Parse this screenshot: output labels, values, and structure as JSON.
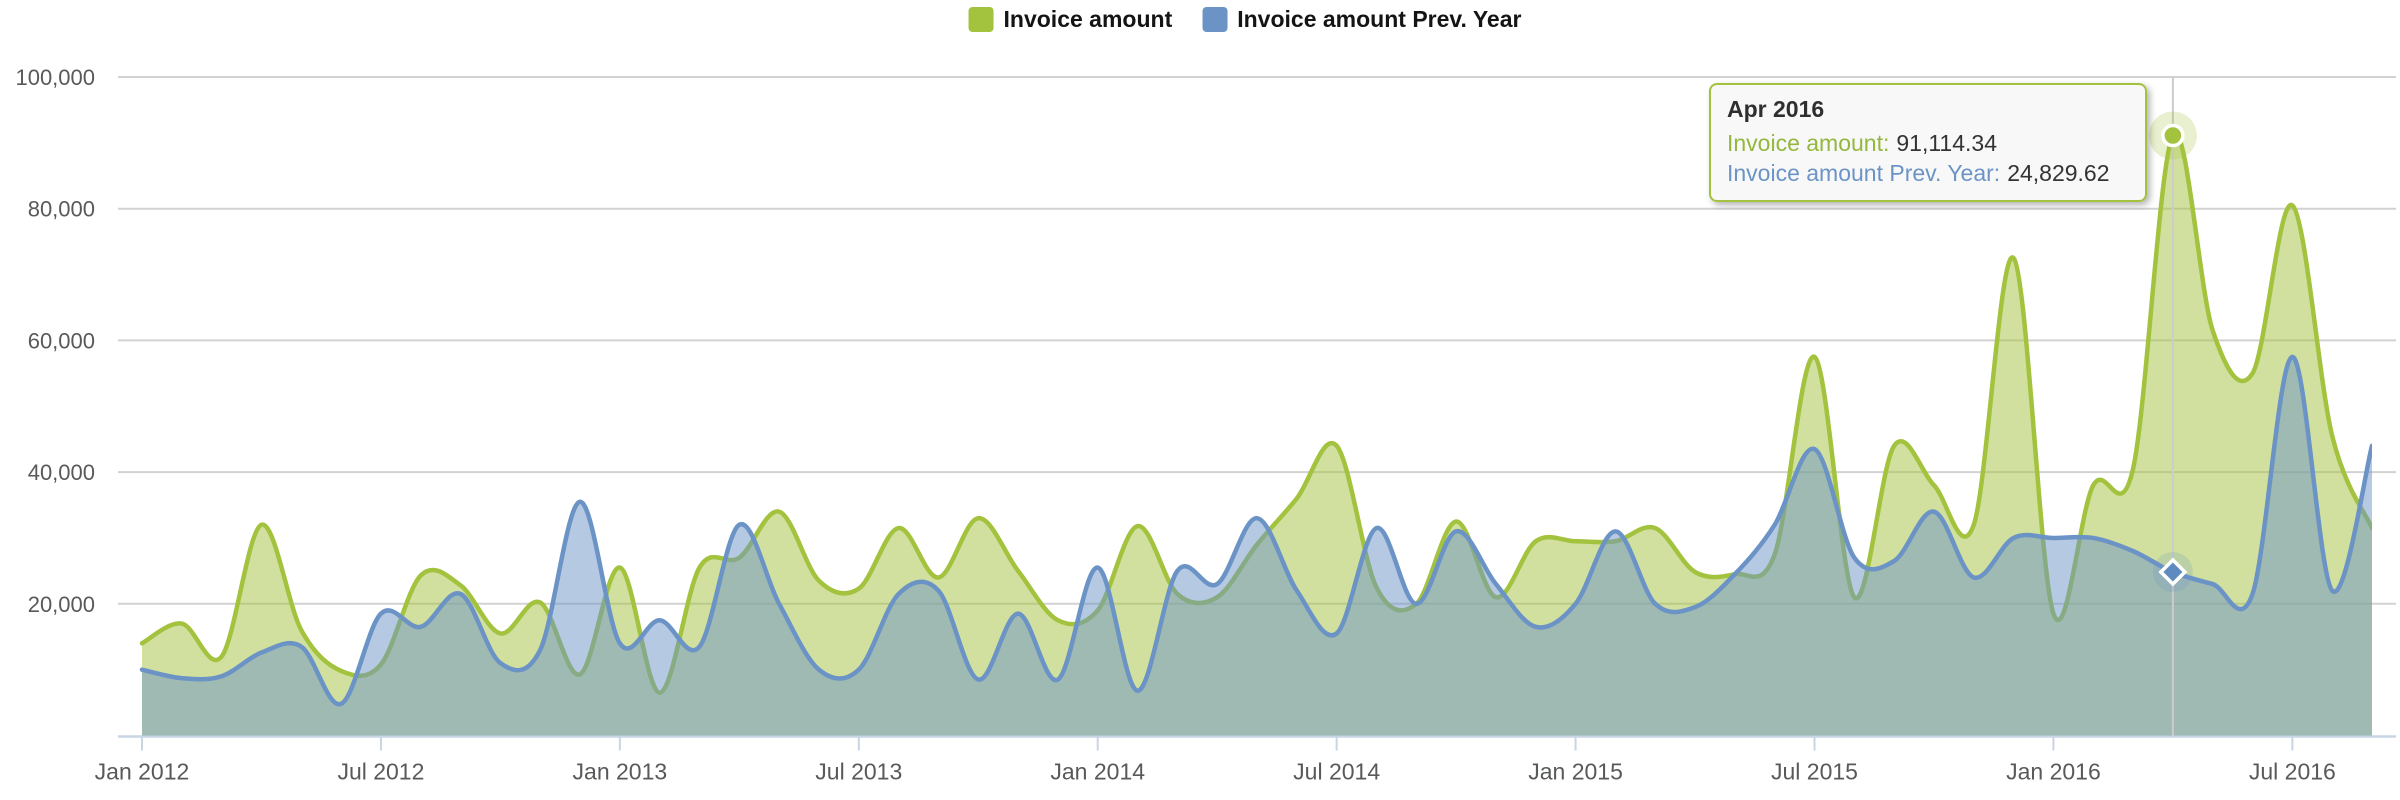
{
  "legend": {
    "items": [
      {
        "label": "Invoice amount",
        "color": "#a3c23e"
      },
      {
        "label": "Invoice amount Prev. Year",
        "color": "#6b93c6"
      }
    ]
  },
  "tooltip": {
    "title": "Apr 2016",
    "rows": [
      {
        "label": "Invoice amount:",
        "value": "91,114.34",
        "color": "#94b73e"
      },
      {
        "label": "Invoice amount Prev. Year:",
        "value": "24,829.62",
        "color": "#6b93c6"
      }
    ]
  },
  "chart_data": {
    "type": "area",
    "title": "",
    "xlabel": "",
    "ylabel": "",
    "x_start": "Jan 2012",
    "x_end": "Sep 2016",
    "x_interval": "month",
    "ylim": [
      0,
      100000
    ],
    "grid": true,
    "legend_position": "top-center",
    "y_ticks": [
      {
        "value": 20000,
        "label": "20,000"
      },
      {
        "value": 40000,
        "label": "40,000"
      },
      {
        "value": 60000,
        "label": "60,000"
      },
      {
        "value": 80000,
        "label": "80,000"
      },
      {
        "value": 100000,
        "label": "100,000"
      }
    ],
    "x_ticks": [
      {
        "month_index": 0,
        "label": "Jan 2012"
      },
      {
        "month_index": 6,
        "label": "Jul 2012"
      },
      {
        "month_index": 12,
        "label": "Jan 2013"
      },
      {
        "month_index": 18,
        "label": "Jul 2013"
      },
      {
        "month_index": 24,
        "label": "Jan 2014"
      },
      {
        "month_index": 30,
        "label": "Jul 2014"
      },
      {
        "month_index": 36,
        "label": "Jan 2015"
      },
      {
        "month_index": 42,
        "label": "Jul 2015"
      },
      {
        "month_index": 48,
        "label": "Jan 2016"
      },
      {
        "month_index": 54,
        "label": "Jul 2016"
      }
    ],
    "series": [
      {
        "name": "Invoice amount",
        "color": "#a3c23e",
        "fill_opacity": 0.5,
        "values": [
          14000,
          17000,
          12000,
          32000,
          16000,
          9800,
          10800,
          24300,
          22800,
          15500,
          20200,
          9300,
          25500,
          6500,
          25500,
          27000,
          34000,
          23500,
          22300,
          31500,
          24000,
          33000,
          25000,
          17500,
          19000,
          31800,
          21500,
          21000,
          29000,
          36000,
          44000,
          22500,
          20000,
          32500,
          21000,
          29500,
          29500,
          29500,
          31500,
          24830,
          24500,
          27500,
          57500,
          21000,
          44000,
          38000,
          32000,
          72500,
          18500,
          38000,
          40500,
          91114.34,
          61500,
          55000,
          80500,
          45500,
          31500
        ]
      },
      {
        "name": "Invoice amount Prev. Year",
        "color": "#6b93c6",
        "fill_opacity": 0.5,
        "values": [
          10000,
          8700,
          9000,
          12600,
          13500,
          4800,
          18500,
          16500,
          21500,
          11000,
          13000,
          35500,
          14000,
          17500,
          13500,
          32000,
          20000,
          10000,
          10000,
          21500,
          22000,
          8500,
          18500,
          8500,
          25500,
          6800,
          25000,
          23000,
          33000,
          22000,
          15500,
          31500,
          20000,
          31000,
          23000,
          16500,
          20000,
          31000,
          20000,
          19500,
          24500,
          32000,
          43500,
          27000,
          26500,
          34000,
          24000,
          30000,
          30000,
          30000,
          28000,
          24829.62,
          23000,
          21500,
          57500,
          22000,
          44000
        ]
      }
    ],
    "highlight": {
      "month_index": 51,
      "label": "Apr 2016",
      "values": [
        91114.34,
        24829.62
      ]
    }
  },
  "style": {
    "gridline_color": "#d2d2d2",
    "axis_line_color": "#c8d5e5",
    "axis_label_color": "#58595b",
    "crosshair_color": "#cccccc",
    "background": "#ffffff"
  }
}
